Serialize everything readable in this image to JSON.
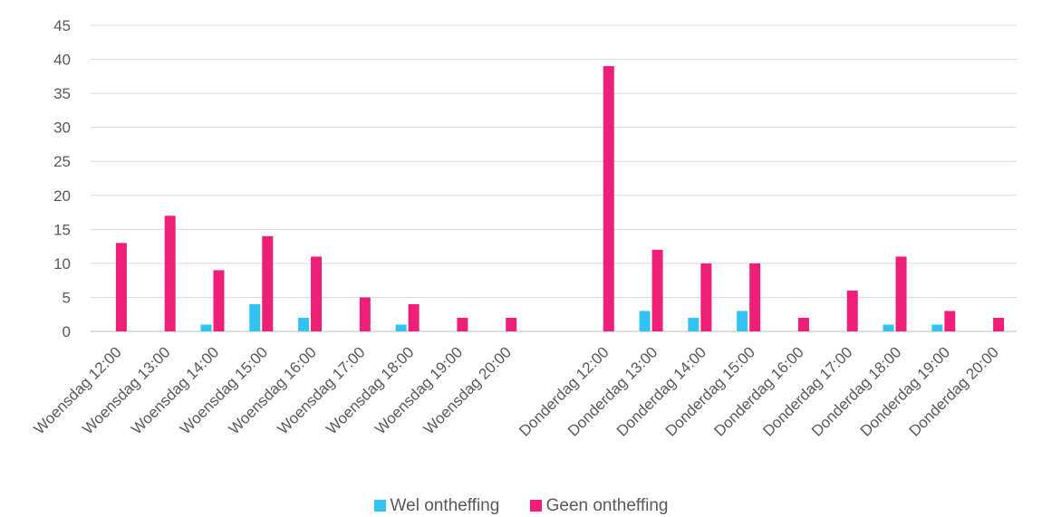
{
  "chart_data": {
    "type": "bar",
    "categories": [
      "Woensdag 12:00",
      "Woensdag 13:00",
      "Woensdag 14:00",
      "Woensdag 15:00",
      "Woensdag 16:00",
      "Woensdag 17:00",
      "Woensdag 18:00",
      "Woensdag 19:00",
      "Woensdag 20:00",
      "",
      "Donderdag 12:00",
      "Donderdag 13:00",
      "Donderdag 14:00",
      "Donderdag 15:00",
      "Donderdag 16:00",
      "Donderdag 17:00",
      "Donderdag 18:00",
      "Donderdag 19:00",
      "Donderdag 20:00"
    ],
    "series": [
      {
        "name": "Wel ontheffing",
        "color": "#33c3f2",
        "values": [
          0,
          0,
          1,
          4,
          2,
          0,
          1,
          0,
          0,
          0,
          0,
          3,
          2,
          3,
          0,
          0,
          1,
          1,
          0
        ]
      },
      {
        "name": "Geen ontheffing",
        "color": "#ee1f78",
        "values": [
          13,
          17,
          9,
          14,
          11,
          5,
          4,
          2,
          2,
          0,
          39,
          12,
          10,
          10,
          2,
          6,
          11,
          3,
          2
        ]
      }
    ],
    "yticks": [
      0,
      5,
      10,
      15,
      20,
      25,
      30,
      35,
      40,
      45
    ],
    "ylim": [
      0,
      45
    ],
    "grid": true,
    "legend": "bottom"
  }
}
